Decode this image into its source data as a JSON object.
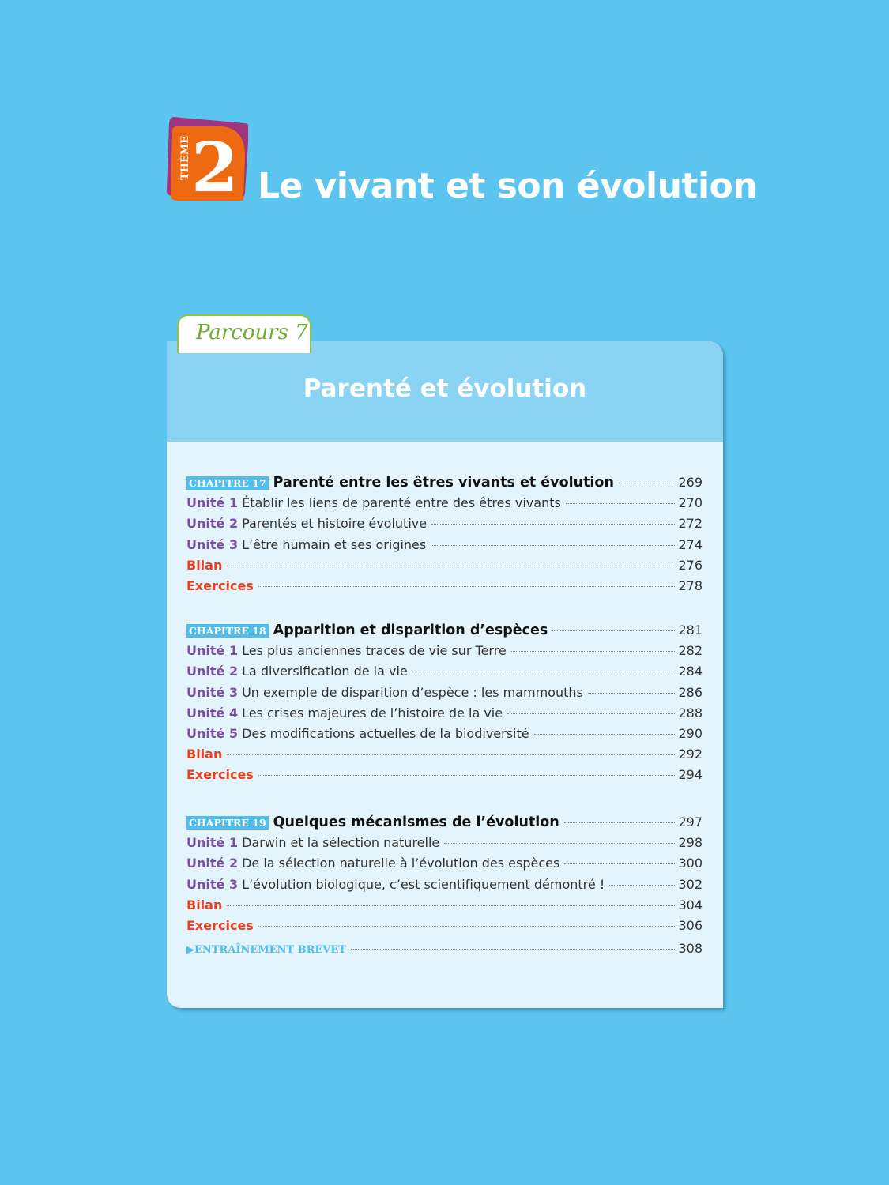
{
  "theme": {
    "label": "THÈME",
    "number": "2",
    "title": "Le vivant et son évolution",
    "colors": {
      "purple": "#A0357F",
      "orange": "#EE6A12"
    }
  },
  "parcours": {
    "label": "Parcours 7",
    "title": "Parenté et évolution"
  },
  "chapters": [
    {
      "badge": "CHAPITRE 17",
      "title": "Parenté entre les êtres vivants et évolution",
      "page": "269",
      "items": [
        {
          "type": "unit",
          "label": "Unité 1",
          "text": "Établir les liens de parenté entre des êtres vivants",
          "page": "270"
        },
        {
          "type": "unit",
          "label": "Unité 2",
          "text": "Parentés et histoire évolutive",
          "page": "272"
        },
        {
          "type": "unit",
          "label": "Unité 3",
          "text": "L’être humain et ses origines",
          "page": "274"
        },
        {
          "type": "red",
          "label": "Bilan",
          "text": "",
          "page": "276"
        },
        {
          "type": "red",
          "label": "Exercices",
          "text": "",
          "page": "278"
        }
      ]
    },
    {
      "badge": "CHAPITRE 18",
      "title": "Apparition et disparition d’espèces",
      "page": "281",
      "items": [
        {
          "type": "unit",
          "label": "Unité 1",
          "text": "Les plus anciennes traces de vie sur Terre",
          "page": "282"
        },
        {
          "type": "unit",
          "label": "Unité 2",
          "text": "La diversification de la vie",
          "page": "284"
        },
        {
          "type": "unit",
          "label": "Unité 3",
          "text": "Un exemple de disparition d’espèce : les mammouths",
          "page": "286"
        },
        {
          "type": "unit",
          "label": "Unité 4",
          "text": "Les crises majeures de l’histoire de la vie",
          "page": "288"
        },
        {
          "type": "unit",
          "label": "Unité 5",
          "text": "Des modifications actuelles de la biodiversité",
          "page": "290"
        },
        {
          "type": "red",
          "label": "Bilan",
          "text": "",
          "page": "292"
        },
        {
          "type": "red",
          "label": "Exercices",
          "text": "",
          "page": "294"
        }
      ]
    },
    {
      "badge": "CHAPITRE 19",
      "title": "Quelques mécanismes de l’évolution",
      "page": "297",
      "items": [
        {
          "type": "unit",
          "label": "Unité 1",
          "text": "Darwin et la sélection naturelle",
          "page": "298"
        },
        {
          "type": "unit",
          "label": "Unité 2",
          "text": "De la sélection naturelle à l’évolution des espèces",
          "page": "300"
        },
        {
          "type": "unit",
          "label": "Unité 3",
          "text": "L’évolution biologique, c’est scientifiquement démontré !",
          "page": "302"
        },
        {
          "type": "red",
          "label": "Bilan",
          "text": "",
          "page": "304"
        },
        {
          "type": "red",
          "label": "Exercices",
          "text": "",
          "page": "306"
        },
        {
          "type": "brevet",
          "label": "ENTRAÎNEMENT BREVET",
          "text": "",
          "page": "308"
        }
      ]
    }
  ]
}
